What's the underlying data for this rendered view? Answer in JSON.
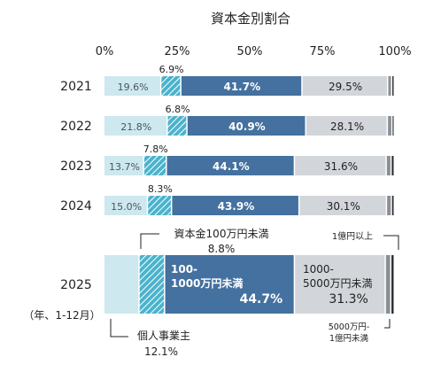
{
  "chart_data": {
    "type": "bar",
    "orientation": "horizontal",
    "stacked": true,
    "title": "資本金別割合",
    "xlim": [
      0,
      100
    ],
    "x_ticks": [
      "0%",
      "25%",
      "50%",
      "75%",
      "100%"
    ],
    "categories": [
      "2021",
      "2022",
      "2023",
      "2024",
      "2025"
    ],
    "year_note": "（年、1-12月）",
    "series": [
      {
        "name": "個人事業主",
        "values": [
          19.6,
          21.8,
          13.7,
          15.0,
          12.1
        ],
        "labels": [
          "19.6%",
          "21.8%",
          "13.7%",
          "15.0%",
          ""
        ]
      },
      {
        "name": "資本金100万円未満",
        "values": [
          6.9,
          6.8,
          7.8,
          8.3,
          8.8
        ],
        "labels": [
          "6.9%",
          "6.8%",
          "7.8%",
          "8.3%",
          ""
        ]
      },
      {
        "name": "100-\n1000万円未満",
        "values": [
          41.7,
          40.9,
          44.1,
          43.9,
          44.7
        ],
        "labels": [
          "41.7%",
          "40.9%",
          "44.1%",
          "43.9%",
          "44.7%"
        ]
      },
      {
        "name": "1000-\n5000万円未満",
        "values": [
          29.5,
          28.1,
          31.6,
          30.1,
          31.3
        ],
        "labels": [
          "29.5%",
          "28.1%",
          "31.6%",
          "30.1%",
          "31.3%"
        ]
      },
      {
        "name": "5000万円-\n1億円未満",
        "values": [
          1.4,
          1.6,
          1.7,
          1.7,
          1.9
        ]
      },
      {
        "name": "1億円以上",
        "values": [
          0.9,
          0.8,
          1.1,
          1.0,
          1.2
        ]
      }
    ],
    "colors": [
      "#cde8ee",
      "#4bb3cc",
      "#44719f",
      "#d2d6da",
      "#8a8f95",
      "#2c2c2c"
    ],
    "callouts": {
      "small_cap": {
        "label": "資本金100万円未満",
        "value": "8.8%"
      },
      "individual": {
        "label": "個人事業主",
        "value": "12.1%"
      },
      "mid_cap": {
        "label": "100-\n1000万円未満",
        "value": "44.7%"
      },
      "upper_cap": {
        "label": "1000-\n5000万円未満",
        "value": "31.3%"
      },
      "large_cap": {
        "label": "1億円以上"
      },
      "near_large_cap": {
        "label": "5000万円-\n1億円未満"
      }
    }
  }
}
